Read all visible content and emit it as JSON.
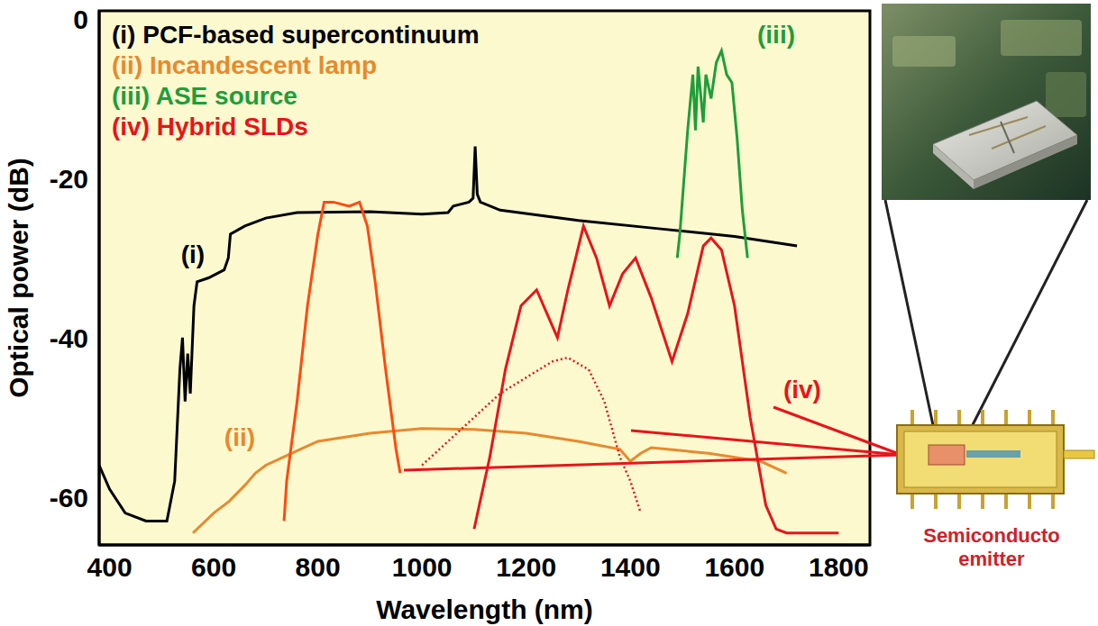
{
  "chart_data": {
    "type": "line",
    "x_label": "Wavelength (nm)",
    "y_label": "Optical power (dB)",
    "xlim": [
      380,
      1860
    ],
    "ylim": [
      -66,
      1
    ],
    "xticks": [
      400,
      600,
      800,
      1000,
      1200,
      1400,
      1600,
      1800
    ],
    "yticks": [
      -60,
      -40,
      -20,
      0
    ],
    "grid": false,
    "legend": "upper left",
    "series": [
      {
        "name": "(i) PCF-based supercontinuum",
        "color": "#000000",
        "x": [
          380,
          400,
          430,
          470,
          510,
          525,
          535,
          540,
          545,
          550,
          555,
          562,
          568,
          590,
          620,
          628,
          632,
          660,
          700,
          760,
          900,
          1000,
          1050,
          1060,
          1090,
          1098,
          1102,
          1106,
          1112,
          1150,
          1300,
          1450,
          1600,
          1700,
          1720
        ],
        "values": [
          -56,
          -59,
          -62,
          -63,
          -63,
          -58,
          -44,
          -40,
          -48,
          -42,
          -47,
          -36,
          -33,
          -32.5,
          -31.5,
          -30,
          -27,
          -26,
          -25,
          -24.3,
          -24.2,
          -24.5,
          -24.3,
          -23.5,
          -23,
          -22.5,
          -16,
          -22,
          -23,
          -24,
          -25.3,
          -26.3,
          -27.3,
          -28.3,
          -28.5
        ]
      },
      {
        "name": "(ii) Incandescent lamp",
        "color": "#e8892e",
        "x": [
          560,
          600,
          630,
          660,
          680,
          700,
          750,
          800,
          900,
          1000,
          1100,
          1200,
          1300,
          1380,
          1400,
          1420,
          1440,
          1550,
          1650,
          1700
        ],
        "values": [
          -64.5,
          -62,
          -60.5,
          -58.5,
          -57,
          -56,
          -54.5,
          -53,
          -52,
          -51.4,
          -51.5,
          -52,
          -53,
          -54,
          -55.5,
          -54.5,
          -53.8,
          -54.5,
          -55.5,
          -57
        ]
      },
      {
        "name": "(iii) ASE source",
        "color": "#1e9e3a",
        "x": [
          1490,
          1495,
          1510,
          1520,
          1525,
          1530,
          1540,
          1545,
          1555,
          1565,
          1575,
          1585,
          1595,
          1605,
          1615,
          1625
        ],
        "values": [
          -30,
          -27,
          -14,
          -7,
          -14,
          -6,
          -13,
          -7,
          -10,
          -5.5,
          -4,
          -7,
          -8,
          -15,
          -24,
          -30
        ]
      },
      {
        "name": "(iv) Hybrid SLDs",
        "color": "#e8141a",
        "x": [
          1100,
          1130,
          1160,
          1190,
          1220,
          1240,
          1260,
          1280,
          1310,
          1335,
          1360,
          1385,
          1410,
          1440,
          1480,
          1510,
          1540,
          1555,
          1575,
          1600,
          1630,
          1660,
          1680,
          1700,
          1800
        ],
        "values": [
          -64,
          -55,
          -44,
          -36,
          -34,
          -37,
          -40,
          -34,
          -26,
          -30,
          -36,
          -32,
          -30,
          -35,
          -43,
          -37,
          -28.5,
          -27.5,
          -29,
          -36,
          -50,
          -61,
          -64,
          -64.5,
          -64.5
        ]
      },
      {
        "name": "(iv) Hybrid SLDs",
        "color": "#ff4a10",
        "x": [
          735,
          740,
          760,
          780,
          800,
          812,
          830,
          860,
          880,
          895,
          910,
          930,
          950,
          958
        ],
        "values": [
          -63,
          -58,
          -48,
          -36,
          -27,
          -23,
          -23,
          -23.5,
          -23,
          -26,
          -33,
          -44,
          -54,
          -57
        ]
      },
      {
        "name": "(iv) Hybrid SLDs",
        "color": "#e8141a",
        "line_style": "dotted",
        "x": [
          1000,
          1050,
          1100,
          1150,
          1200,
          1250,
          1280,
          1320,
          1350,
          1380,
          1400,
          1420
        ],
        "values": [
          -56,
          -53,
          -50,
          -47,
          -45,
          -43,
          -42.5,
          -44,
          -48,
          -55,
          -58,
          -62
        ]
      }
    ],
    "annotations": [
      {
        "text": "(i)",
        "x": 560,
        "y": -29.5,
        "color": "#000000"
      },
      {
        "text": "(ii)",
        "x": 650,
        "y": -52.5,
        "color": "#e8892e"
      },
      {
        "text": "(iii)",
        "x": 1680,
        "y": -2,
        "color": "#1e9e3a"
      },
      {
        "text": "(iv)",
        "x": 1730,
        "y": -46.5,
        "color": "#e8141a"
      }
    ]
  },
  "inset_caption": "Semiconducto emitter"
}
